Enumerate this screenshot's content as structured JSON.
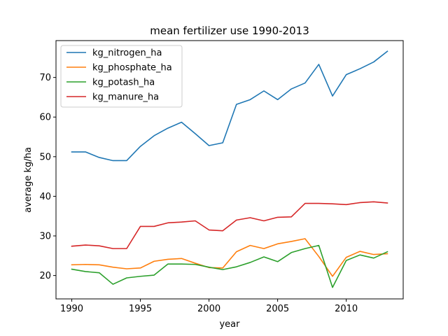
{
  "chart_data": {
    "type": "line",
    "title": "mean fertilizer use 1990-2013",
    "xlabel": "year",
    "ylabel": "average kg/ha",
    "xlim": [
      1988.85,
      2014.15
    ],
    "ylim": [
      14.1,
      79.3
    ],
    "x_ticks": [
      1990,
      1995,
      2000,
      2005,
      2010
    ],
    "y_ticks": [
      20,
      30,
      40,
      50,
      60,
      70
    ],
    "grid": false,
    "legend_position": "upper-left",
    "x": [
      1990,
      1991,
      1992,
      1993,
      1994,
      1995,
      1996,
      1997,
      1998,
      1999,
      2000,
      2001,
      2002,
      2003,
      2004,
      2005,
      2006,
      2007,
      2008,
      2009,
      2010,
      2011,
      2012,
      2013
    ],
    "series": [
      {
        "name": "kg_nitrogen_ha",
        "color": "#1f77b4",
        "values": [
          51.2,
          51.2,
          49.8,
          49.0,
          49.0,
          52.6,
          55.3,
          57.2,
          58.7,
          55.8,
          52.8,
          53.5,
          63.2,
          64.4,
          66.6,
          64.4,
          67.1,
          68.6,
          73.3,
          65.3,
          70.7,
          72.2,
          73.9,
          76.6
        ]
      },
      {
        "name": "kg_phosphate_ha",
        "color": "#ff7f0e",
        "values": [
          22.7,
          22.8,
          22.7,
          22.1,
          21.7,
          21.9,
          23.6,
          24.1,
          24.3,
          23.1,
          22.0,
          21.9,
          26.0,
          27.6,
          26.8,
          28.0,
          28.6,
          29.3,
          24.8,
          19.8,
          24.6,
          26.1,
          25.3,
          25.5
        ]
      },
      {
        "name": "kg_potash_ha",
        "color": "#2ca02c",
        "values": [
          21.6,
          21.0,
          20.7,
          17.8,
          19.4,
          19.8,
          20.1,
          22.9,
          22.9,
          22.8,
          22.1,
          21.5,
          22.2,
          23.3,
          24.7,
          23.5,
          25.8,
          26.8,
          27.6,
          17.0,
          23.8,
          25.2,
          24.4,
          26.0
        ]
      },
      {
        "name": "kg_manure_ha",
        "color": "#d62728",
        "values": [
          27.4,
          27.7,
          27.5,
          26.8,
          26.8,
          32.4,
          32.4,
          33.3,
          33.5,
          33.8,
          31.5,
          31.3,
          34.0,
          34.6,
          33.8,
          34.7,
          34.8,
          38.2,
          38.2,
          38.1,
          37.9,
          38.4,
          38.6,
          38.3
        ]
      }
    ]
  }
}
